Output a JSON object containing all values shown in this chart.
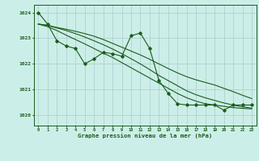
{
  "title": "Graphe pression niveau de la mer (hPa)",
  "background_color": "#cceee8",
  "grid_color": "#aacccc",
  "line_color": "#1a5c1a",
  "xlim": [
    -0.5,
    23.5
  ],
  "ylim": [
    1019.6,
    1024.3
  ],
  "yticks": [
    1020,
    1021,
    1022,
    1023,
    1024
  ],
  "xticks": [
    0,
    1,
    2,
    3,
    4,
    5,
    6,
    7,
    8,
    9,
    10,
    11,
    12,
    13,
    14,
    15,
    16,
    17,
    18,
    19,
    20,
    21,
    22,
    23
  ],
  "s1": [
    1024.0,
    1023.55,
    1022.9,
    1022.7,
    1022.6,
    1022.0,
    1022.2,
    1022.45,
    1022.4,
    1022.3,
    1023.1,
    1023.2,
    1022.6,
    1021.35,
    1020.85,
    1020.45,
    1020.4,
    1020.4,
    1020.4,
    1020.4,
    1020.2,
    1020.4,
    1020.4,
    1020.4
  ],
  "s2": [
    1023.55,
    1023.5,
    1023.42,
    1023.35,
    1023.27,
    1023.18,
    1023.08,
    1022.95,
    1022.8,
    1022.65,
    1022.5,
    1022.35,
    1022.18,
    1022.0,
    1021.82,
    1021.65,
    1021.5,
    1021.38,
    1021.28,
    1021.18,
    1021.05,
    1020.92,
    1020.78,
    1020.65
  ],
  "s3": [
    1023.55,
    1023.5,
    1023.4,
    1023.3,
    1023.18,
    1023.05,
    1022.9,
    1022.75,
    1022.58,
    1022.4,
    1022.2,
    1022.0,
    1021.78,
    1021.55,
    1021.35,
    1021.15,
    1020.95,
    1020.8,
    1020.68,
    1020.58,
    1020.48,
    1020.4,
    1020.33,
    1020.28
  ],
  "s4": [
    1023.55,
    1023.45,
    1023.3,
    1023.12,
    1022.95,
    1022.78,
    1022.6,
    1022.42,
    1022.25,
    1022.05,
    1021.85,
    1021.65,
    1021.45,
    1021.25,
    1021.05,
    1020.85,
    1020.68,
    1020.55,
    1020.45,
    1020.4,
    1020.35,
    1020.3,
    1020.27,
    1020.25
  ]
}
